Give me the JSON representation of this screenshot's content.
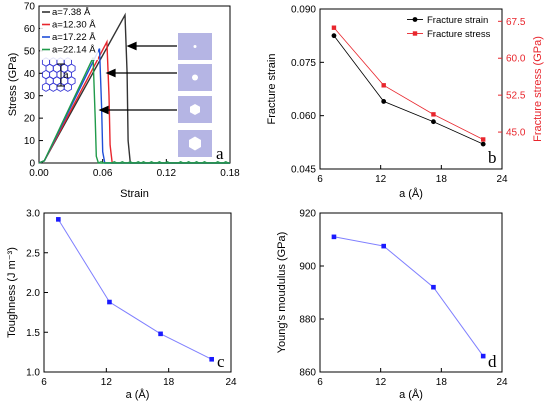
{
  "chart_data": [
    {
      "id": "a",
      "type": "line",
      "panel_letter": "a",
      "xlabel": "Strain",
      "ylabel": "Stress (GPa)",
      "xlim": [
        0,
        0.18
      ],
      "ylim": [
        0,
        70
      ],
      "xticks": [
        0.0,
        0.06,
        0.12,
        0.18
      ],
      "xtick_labels": [
        "0.00",
        "0.06",
        "0.12",
        "0.18"
      ],
      "yticks": [
        0,
        10,
        20,
        30,
        40,
        50,
        60,
        70
      ],
      "ytick_labels": [
        "0",
        "10",
        "20",
        "30",
        "40",
        "50",
        "60",
        "70"
      ],
      "legend_position": "top-left",
      "series": [
        {
          "name": "a=7.38 Å",
          "color": "#333333",
          "x": [
            0.0,
            0.005,
            0.081,
            0.083,
            0.084,
            0.086,
            0.18
          ],
          "y": [
            0,
            1,
            66,
            40,
            10,
            0,
            0
          ]
        },
        {
          "name": "a=12.30 Å",
          "color": "#e8262d",
          "x": [
            0.0,
            0.005,
            0.064,
            0.066,
            0.067,
            0.069,
            0.18
          ],
          "y": [
            0,
            1,
            54,
            30,
            8,
            0,
            0
          ]
        },
        {
          "name": "a=17.22 Å",
          "color": "#1f4fd8",
          "x": [
            0.0,
            0.005,
            0.057,
            0.059,
            0.06,
            0.062,
            0.18
          ],
          "y": [
            0,
            1,
            51,
            25,
            5,
            0,
            0
          ]
        },
        {
          "name": "a=22.14 Å",
          "color": "#1f9a4a",
          "x": [
            0.0,
            0.005,
            0.051,
            0.053,
            0.054,
            0.056,
            0.18
          ],
          "y": [
            0,
            1,
            47,
            20,
            3,
            0,
            0
          ]
        }
      ],
      "inset_label": "a",
      "arrows_to_insets": 4
    },
    {
      "id": "b",
      "type": "line",
      "panel_letter": "b",
      "xlabel": "a (Å)",
      "ylabel": "Fracture strain",
      "ylabel_right": "Fracture stress (GPa)",
      "xlim": [
        6,
        24
      ],
      "ylim": [
        0.045,
        0.09
      ],
      "ylim_right": [
        37.5,
        70
      ],
      "xticks": [
        6,
        12,
        18,
        24
      ],
      "xtick_labels": [
        "6",
        "12",
        "18",
        "24"
      ],
      "yticks": [
        0.045,
        0.06,
        0.075,
        0.09
      ],
      "ytick_labels": [
        "0.045",
        "0.060",
        "0.075",
        "0.090"
      ],
      "yticks_right": [
        45.0,
        52.5,
        60.0,
        67.5
      ],
      "ytick_labels_right": [
        "45.0",
        "52.5",
        "60.0",
        "67.5"
      ],
      "legend_position": "top-right",
      "x": [
        7.38,
        12.3,
        17.22,
        22.14
      ],
      "series": [
        {
          "name": "Fracture strain",
          "color": "#000000",
          "axis": "left",
          "marker": "circle",
          "values": [
            0.0825,
            0.064,
            0.0583,
            0.052
          ]
        },
        {
          "name": "Fracture stress",
          "color": "#e8262d",
          "axis": "right",
          "marker": "square",
          "values": [
            66.2,
            54.5,
            48.6,
            43.5
          ]
        }
      ]
    },
    {
      "id": "c",
      "type": "line",
      "panel_letter": "c",
      "xlabel": "a (Å)",
      "ylabel": "Toughness (J m⁻³)",
      "xlim": [
        6,
        24
      ],
      "ylim": [
        1.0,
        3.0
      ],
      "xticks": [
        6,
        12,
        18,
        24
      ],
      "xtick_labels": [
        "6",
        "12",
        "18",
        "24"
      ],
      "yticks": [
        1.0,
        1.5,
        2.0,
        2.5,
        3.0
      ],
      "ytick_labels": [
        "1.0",
        "1.5",
        "2.0",
        "2.5",
        "3.0"
      ],
      "x": [
        7.38,
        12.3,
        17.22,
        22.14
      ],
      "series": [
        {
          "color": "#1a1aff",
          "line_color": "#7f7fff",
          "marker": "square",
          "values": [
            2.92,
            1.88,
            1.48,
            1.16
          ]
        }
      ]
    },
    {
      "id": "d",
      "type": "line",
      "panel_letter": "d",
      "xlabel": "a (Å)",
      "ylabel": "Young's moudulus (GPa)",
      "xlim": [
        6,
        24
      ],
      "ylim": [
        860,
        920
      ],
      "xticks": [
        6,
        12,
        18,
        24
      ],
      "xtick_labels": [
        "6",
        "12",
        "18",
        "24"
      ],
      "yticks": [
        860,
        880,
        900,
        920
      ],
      "ytick_labels": [
        "860",
        "880",
        "900",
        "920"
      ],
      "x": [
        7.38,
        12.3,
        17.22,
        22.14
      ],
      "series": [
        {
          "color": "#1a1aff",
          "line_color": "#7f7fff",
          "marker": "square",
          "values": [
            911,
            907.5,
            892,
            866
          ]
        }
      ]
    }
  ]
}
